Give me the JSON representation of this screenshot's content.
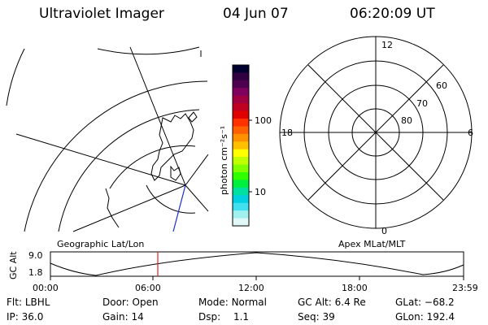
{
  "header": {
    "title": "Ultraviolet Imager",
    "date": "04 Jun 07",
    "time": "06:20:09 UT"
  },
  "colorbar": {
    "unit_label": "photon cm⁻²s⁻¹",
    "ticks": [
      "100",
      "10"
    ],
    "colors": [
      "#000030",
      "#300040",
      "#500050",
      "#800060",
      "#a00040",
      "#c00020",
      "#e00000",
      "#ff3000",
      "#ff6000",
      "#ff9000",
      "#ffc000",
      "#ffff00",
      "#c0ff00",
      "#80ff00",
      "#30ff00",
      "#00f040",
      "#00e0a0",
      "#00d0e0",
      "#40e0f0",
      "#a0f0f0",
      "#e0f8f8"
    ]
  },
  "polar": {
    "mlt_labels": {
      "top": "12",
      "right": "6",
      "bottom": "0",
      "left": "18"
    },
    "lat_labels": [
      "60",
      "70",
      "80"
    ]
  },
  "timeline": {
    "left_label": "Geographic Lat/Lon",
    "right_label": "Apex MLat/MLT",
    "axis_label": "GC Alt",
    "y_ticks": [
      "9.0",
      "1.8"
    ],
    "x_ticks": [
      "00:00",
      "06:00",
      "12:00",
      "18:00",
      "23:59"
    ],
    "marker_color": "#e02020"
  },
  "info": {
    "flt_label": "Flt:",
    "flt_value": "LBHL",
    "ip_label": "IP:",
    "ip_value": "36.0",
    "door_label": "Door:",
    "door_value": "Open",
    "gain_label": "Gain:",
    "gain_value": "14",
    "mode_label": "Mode:",
    "mode_value": "Normal",
    "dsp_label": "Dsp:",
    "dsp_value": "1.1",
    "gcalt_label": "GC Alt:",
    "gcalt_value": "6.4 Re",
    "seq_label": "Seq:",
    "seq_value": "39",
    "glat_label": "GLat:",
    "glat_value": "−68.2",
    "glon_label": "GLon:",
    "glon_value": "192.4"
  }
}
